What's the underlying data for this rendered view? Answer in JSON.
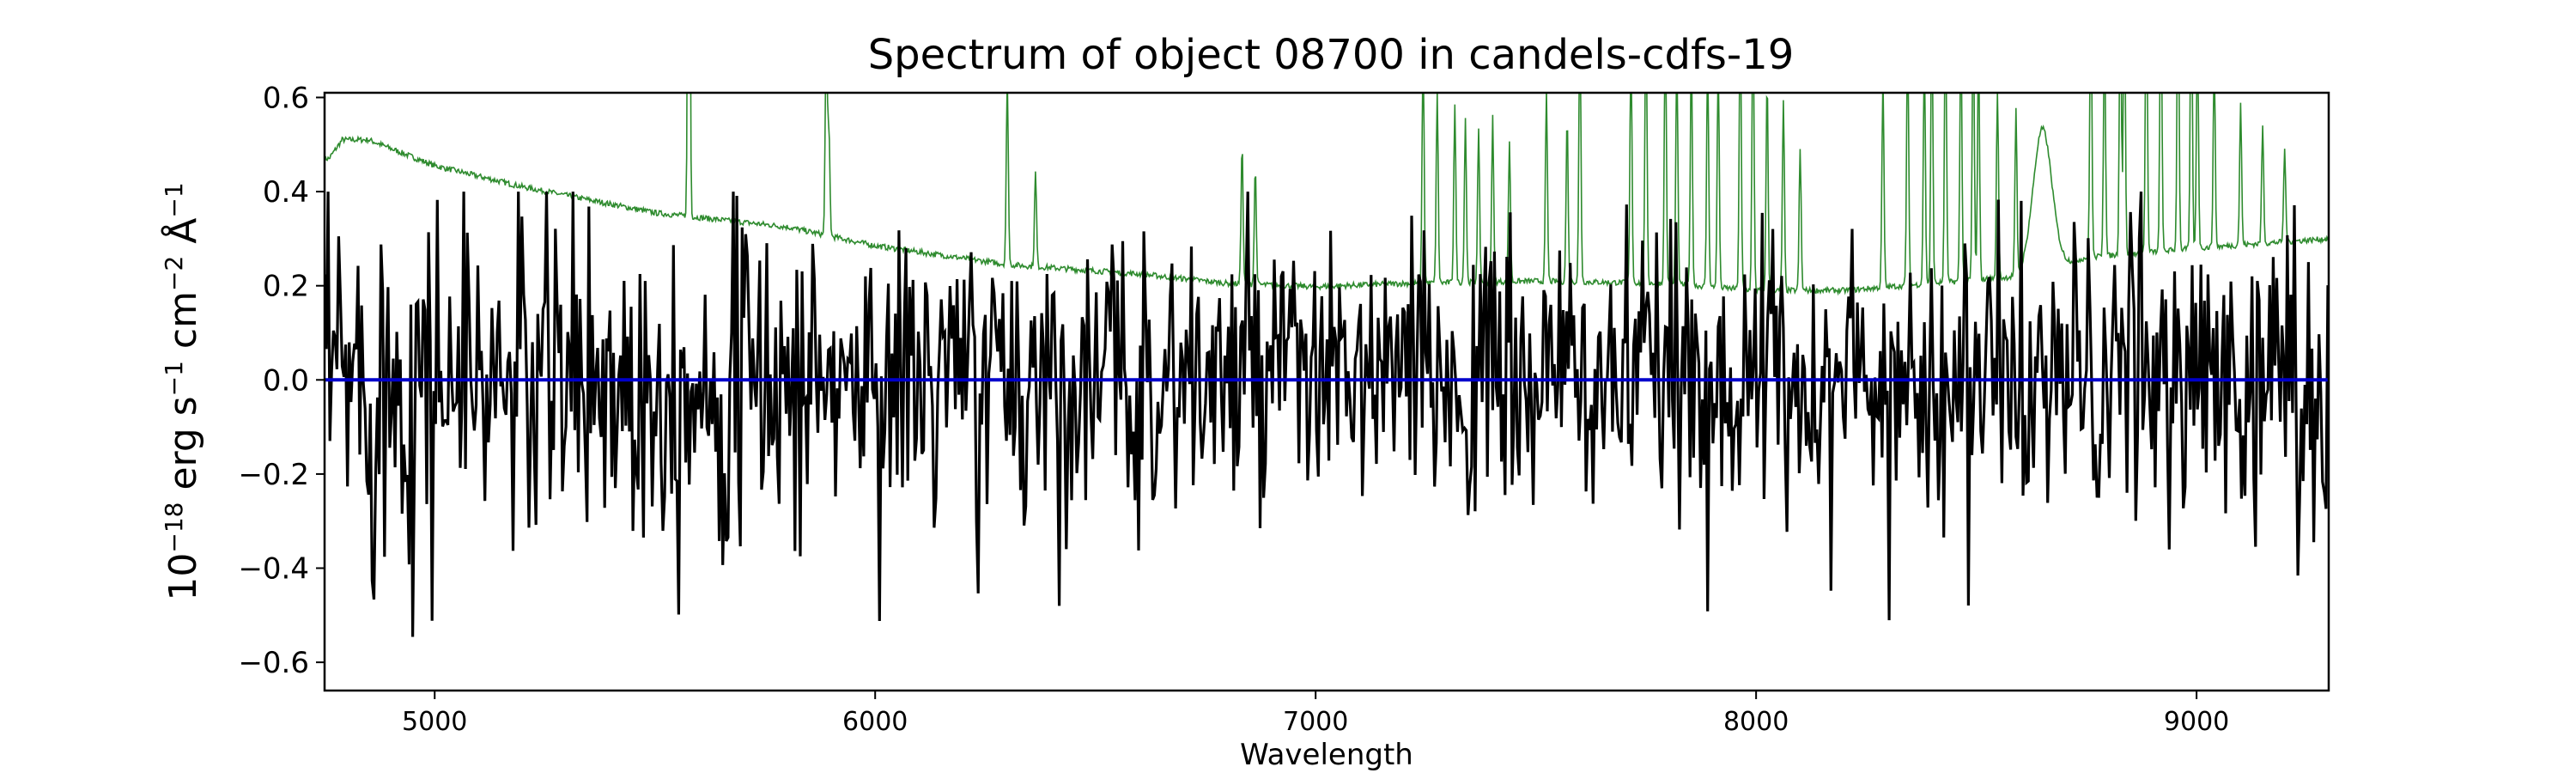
{
  "chart_data": {
    "type": "line",
    "title": "Spectrum of object 08700 in candels-cdfs-19",
    "xlabel": "Wavelength",
    "ylabel_parts": {
      "base": "10",
      "exp": "−18",
      "unit1": " erg s",
      "exp1": "−1",
      "unit2": " cm",
      "exp2": "−2",
      "unit3": " Å",
      "exp3": "−1"
    },
    "xlim": [
      4750,
      9300
    ],
    "ylim": [
      -0.66,
      0.61
    ],
    "xticks": [
      5000,
      6000,
      7000,
      8000,
      9000
    ],
    "xtick_labels": [
      "5000",
      "6000",
      "7000",
      "8000",
      "9000"
    ],
    "yticks": [
      0.6,
      0.4,
      0.2,
      0.0,
      -0.2,
      -0.4,
      -0.6
    ],
    "ytick_labels": [
      "0.6",
      "0.4",
      "0.2",
      "0.0",
      "−0.2",
      "−0.4",
      "−0.6"
    ],
    "colors": {
      "flux": "#000000",
      "noise": "#2e8b2e",
      "zero": "#0000cc",
      "axes": "#000000"
    },
    "series": [
      {
        "key": "noise",
        "continuum": [
          [
            4760,
            0.47
          ],
          [
            4790,
            0.51
          ],
          [
            4850,
            0.51
          ],
          [
            5000,
            0.455
          ],
          [
            5200,
            0.41
          ],
          [
            5500,
            0.355
          ],
          [
            5800,
            0.325
          ],
          [
            6000,
            0.285
          ],
          [
            6300,
            0.245
          ],
          [
            6600,
            0.225
          ],
          [
            6800,
            0.205
          ],
          [
            7000,
            0.198
          ],
          [
            7200,
            0.205
          ],
          [
            7500,
            0.21
          ],
          [
            7800,
            0.205
          ],
          [
            8000,
            0.19
          ],
          [
            8200,
            0.19
          ],
          [
            8600,
            0.22
          ],
          [
            8750,
            0.26
          ],
          [
            9000,
            0.28
          ],
          [
            9300,
            0.3
          ]
        ],
        "lines": [
          [
            5577,
            1.4
          ],
          [
            5889,
            0.45
          ],
          [
            5895,
            0.22
          ],
          [
            6300,
            0.4
          ],
          [
            6364,
            0.2
          ],
          [
            6833,
            0.3
          ],
          [
            6863,
            0.25
          ],
          [
            7244,
            0.5
          ],
          [
            7276,
            0.4
          ],
          [
            7316,
            0.38
          ],
          [
            7340,
            0.35
          ],
          [
            7370,
            0.32
          ],
          [
            7402,
            0.35
          ],
          [
            7440,
            0.3
          ],
          [
            7524,
            0.4
          ],
          [
            7571,
            0.35
          ],
          [
            7600,
            0.55
          ],
          [
            7716,
            0.5
          ],
          [
            7750,
            0.6
          ],
          [
            7794,
            0.55
          ],
          [
            7820,
            0.5
          ],
          [
            7853,
            0.5
          ],
          [
            7890,
            0.5
          ],
          [
            7914,
            0.48
          ],
          [
            7964,
            0.6
          ],
          [
            7993,
            0.6
          ],
          [
            8025,
            0.45
          ],
          [
            8062,
            0.4
          ],
          [
            8100,
            0.3
          ],
          [
            8288,
            0.45
          ],
          [
            8344,
            0.55
          ],
          [
            8382,
            0.5
          ],
          [
            8399,
            0.6
          ],
          [
            8430,
            0.6
          ],
          [
            8465,
            0.55
          ],
          [
            8493,
            0.6
          ],
          [
            8505,
            0.5
          ],
          [
            8548,
            0.4
          ],
          [
            8590,
            0.35
          ],
          [
            8760,
            0.6
          ],
          [
            8791,
            0.5
          ],
          [
            8827,
            0.6
          ],
          [
            8836,
            0.6
          ],
          [
            8886,
            0.6
          ],
          [
            8919,
            0.6
          ],
          [
            8958,
            0.6
          ],
          [
            8988,
            0.6
          ],
          [
            9002,
            0.45
          ],
          [
            9040,
            0.4
          ],
          [
            9100,
            0.3
          ],
          [
            9150,
            0.25
          ],
          [
            9200,
            0.2
          ]
        ],
        "bump": [
          8650,
          0.3,
          30
        ]
      },
      {
        "key": "flux",
        "sample_step": 4,
        "noise_amplitude": 0.13
      },
      {
        "key": "zero",
        "values": [
          [
            4750,
            0.0
          ],
          [
            9300,
            0.0
          ]
        ]
      }
    ]
  }
}
